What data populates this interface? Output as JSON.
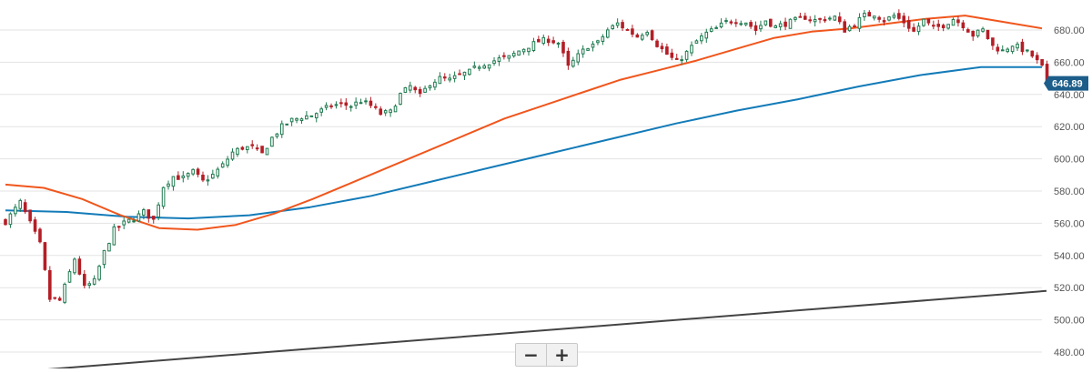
{
  "chart_data": {
    "type": "candlestick",
    "ylim": [
      470,
      700
    ],
    "y_ticks": [
      "680.00",
      "660.00",
      "640.00",
      "620.00",
      "600.00",
      "580.00",
      "560.00",
      "540.00",
      "520.00",
      "500.00",
      "480.00"
    ],
    "grid": true,
    "last_price": "646.89",
    "colors": {
      "up": "#1f7a4f",
      "down": "#b41e26",
      "ma_fast": "#f0561d",
      "ma_slow": "#137bb8",
      "trend": "#444444",
      "price_tag": "#1c5d8a",
      "grid": "#e3e3e3"
    },
    "close_path": [
      [
        0,
        561
      ],
      [
        3,
        573
      ],
      [
        5,
        560
      ],
      [
        7,
        547
      ],
      [
        9,
        513
      ],
      [
        11,
        512
      ],
      [
        14,
        538
      ],
      [
        16,
        520
      ],
      [
        18,
        524
      ],
      [
        20,
        542
      ],
      [
        22,
        556
      ],
      [
        24,
        560
      ],
      [
        26,
        563
      ],
      [
        28,
        567
      ],
      [
        30,
        562
      ],
      [
        32,
        583
      ],
      [
        34,
        589
      ],
      [
        36,
        588
      ],
      [
        38,
        592
      ],
      [
        40,
        586
      ],
      [
        42,
        590
      ],
      [
        44,
        596
      ],
      [
        46,
        604
      ],
      [
        48,
        607
      ],
      [
        50,
        607
      ],
      [
        52,
        603
      ],
      [
        54,
        613
      ],
      [
        56,
        620
      ],
      [
        58,
        624
      ],
      [
        60,
        626
      ],
      [
        62,
        627
      ],
      [
        64,
        630
      ],
      [
        66,
        633
      ],
      [
        68,
        634
      ],
      [
        70,
        633
      ],
      [
        72,
        636
      ],
      [
        74,
        633
      ],
      [
        76,
        628
      ],
      [
        78,
        629
      ],
      [
        80,
        640
      ],
      [
        82,
        645
      ],
      [
        84,
        639
      ],
      [
        86,
        647
      ],
      [
        88,
        650
      ],
      [
        90,
        649
      ],
      [
        92,
        652
      ],
      [
        94,
        654
      ],
      [
        96,
        658
      ],
      [
        98,
        660
      ],
      [
        100,
        662
      ],
      [
        102,
        663
      ],
      [
        104,
        667
      ],
      [
        106,
        670
      ],
      [
        108,
        673
      ],
      [
        110,
        674
      ],
      [
        112,
        672
      ],
      [
        114,
        657
      ],
      [
        116,
        664
      ],
      [
        118,
        670
      ],
      [
        120,
        672
      ],
      [
        122,
        680
      ],
      [
        124,
        684
      ],
      [
        126,
        680
      ],
      [
        128,
        676
      ],
      [
        130,
        680
      ],
      [
        132,
        671
      ],
      [
        134,
        665
      ],
      [
        136,
        660
      ],
      [
        138,
        666
      ],
      [
        140,
        673
      ],
      [
        142,
        678
      ],
      [
        144,
        681
      ],
      [
        146,
        685
      ],
      [
        148,
        686
      ],
      [
        150,
        685
      ],
      [
        152,
        680
      ],
      [
        154,
        686
      ],
      [
        156,
        682
      ],
      [
        158,
        684
      ],
      [
        160,
        686
      ],
      [
        162,
        688
      ],
      [
        164,
        686
      ],
      [
        166,
        687
      ],
      [
        168,
        688
      ],
      [
        170,
        680
      ],
      [
        172,
        684
      ],
      [
        174,
        689
      ],
      [
        176,
        690
      ],
      [
        178,
        686
      ],
      [
        180,
        689
      ],
      [
        182,
        685
      ],
      [
        184,
        679
      ],
      [
        186,
        686
      ],
      [
        188,
        681
      ],
      [
        190,
        683
      ],
      [
        192,
        687
      ],
      [
        194,
        683
      ],
      [
        196,
        677
      ],
      [
        198,
        680
      ],
      [
        200,
        670
      ],
      [
        202,
        667
      ],
      [
        204,
        671
      ],
      [
        206,
        668
      ],
      [
        208,
        664
      ],
      [
        210,
        657
      ],
      [
        211,
        647
      ]
    ],
    "ma_fast_values": [
      584,
      582,
      575,
      565,
      557,
      556,
      559,
      566,
      575,
      585,
      595,
      605,
      615,
      625,
      633,
      641,
      649,
      655,
      661,
      668,
      675,
      679,
      681,
      684,
      687,
      689,
      685,
      681
    ],
    "ma_slow_values": [
      568,
      567,
      564,
      563,
      565,
      570,
      577,
      586,
      595,
      604,
      613,
      622,
      630,
      637,
      645,
      652,
      657,
      657
    ],
    "trend_values": [
      469,
      518
    ]
  },
  "controls": {
    "zoom_out_label": "−",
    "zoom_in_label": "+"
  }
}
